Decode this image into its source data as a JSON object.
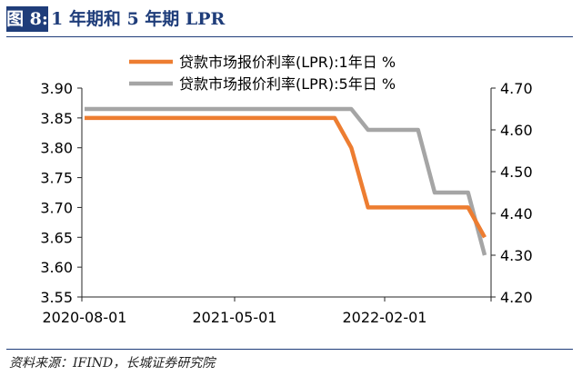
{
  "header": {
    "figure_label": "图 8:",
    "figure_title": "1 年期和 5 年期 LPR"
  },
  "source": "资料来源：IFIND，长城证券研究院",
  "colors": {
    "series_1y": "#ed7d31",
    "series_5y": "#a5a5a5",
    "header": "#1f3d7a",
    "axis": "#262626"
  },
  "chart_data": {
    "type": "line",
    "title": "",
    "xlabel": "",
    "x": [
      "2020-08-01",
      "2020-09-01",
      "2020-10-01",
      "2020-11-01",
      "2020-12-01",
      "2021-01-01",
      "2021-02-01",
      "2021-03-01",
      "2021-04-01",
      "2021-05-01",
      "2021-06-01",
      "2021-07-01",
      "2021-08-01",
      "2021-09-01",
      "2021-10-01",
      "2021-11-01",
      "2021-12-01",
      "2022-01-01",
      "2022-02-01",
      "2022-03-01",
      "2022-04-01",
      "2022-05-01",
      "2022-06-01",
      "2022-07-01",
      "2022-08-01"
    ],
    "x_ticks": [
      "2020-08-01",
      "2021-05-01",
      "2022-02-01"
    ],
    "left_axis": {
      "ylim": [
        3.55,
        3.9
      ],
      "ticks": [
        "3.55",
        "3.60",
        "3.65",
        "3.70",
        "3.75",
        "3.80",
        "3.85",
        "3.90"
      ]
    },
    "right_axis": {
      "ylim": [
        4.2,
        4.7
      ],
      "ticks": [
        "4.20",
        "4.30",
        "4.40",
        "4.50",
        "4.60",
        "4.70"
      ]
    },
    "series": [
      {
        "name": "贷款市场报价利率(LPR):1年日 %",
        "axis": "left",
        "values": [
          3.85,
          3.85,
          3.85,
          3.85,
          3.85,
          3.85,
          3.85,
          3.85,
          3.85,
          3.85,
          3.85,
          3.85,
          3.85,
          3.85,
          3.85,
          3.85,
          3.8,
          3.7,
          3.7,
          3.7,
          3.7,
          3.7,
          3.7,
          3.7,
          3.65
        ]
      },
      {
        "name": "贷款市场报价利率(LPR):5年日 %",
        "axis": "right",
        "values": [
          4.65,
          4.65,
          4.65,
          4.65,
          4.65,
          4.65,
          4.65,
          4.65,
          4.65,
          4.65,
          4.65,
          4.65,
          4.65,
          4.65,
          4.65,
          4.65,
          4.65,
          4.6,
          4.6,
          4.6,
          4.6,
          4.45,
          4.45,
          4.45,
          4.3
        ]
      }
    ],
    "legend_position": "top-center",
    "grid": false
  }
}
